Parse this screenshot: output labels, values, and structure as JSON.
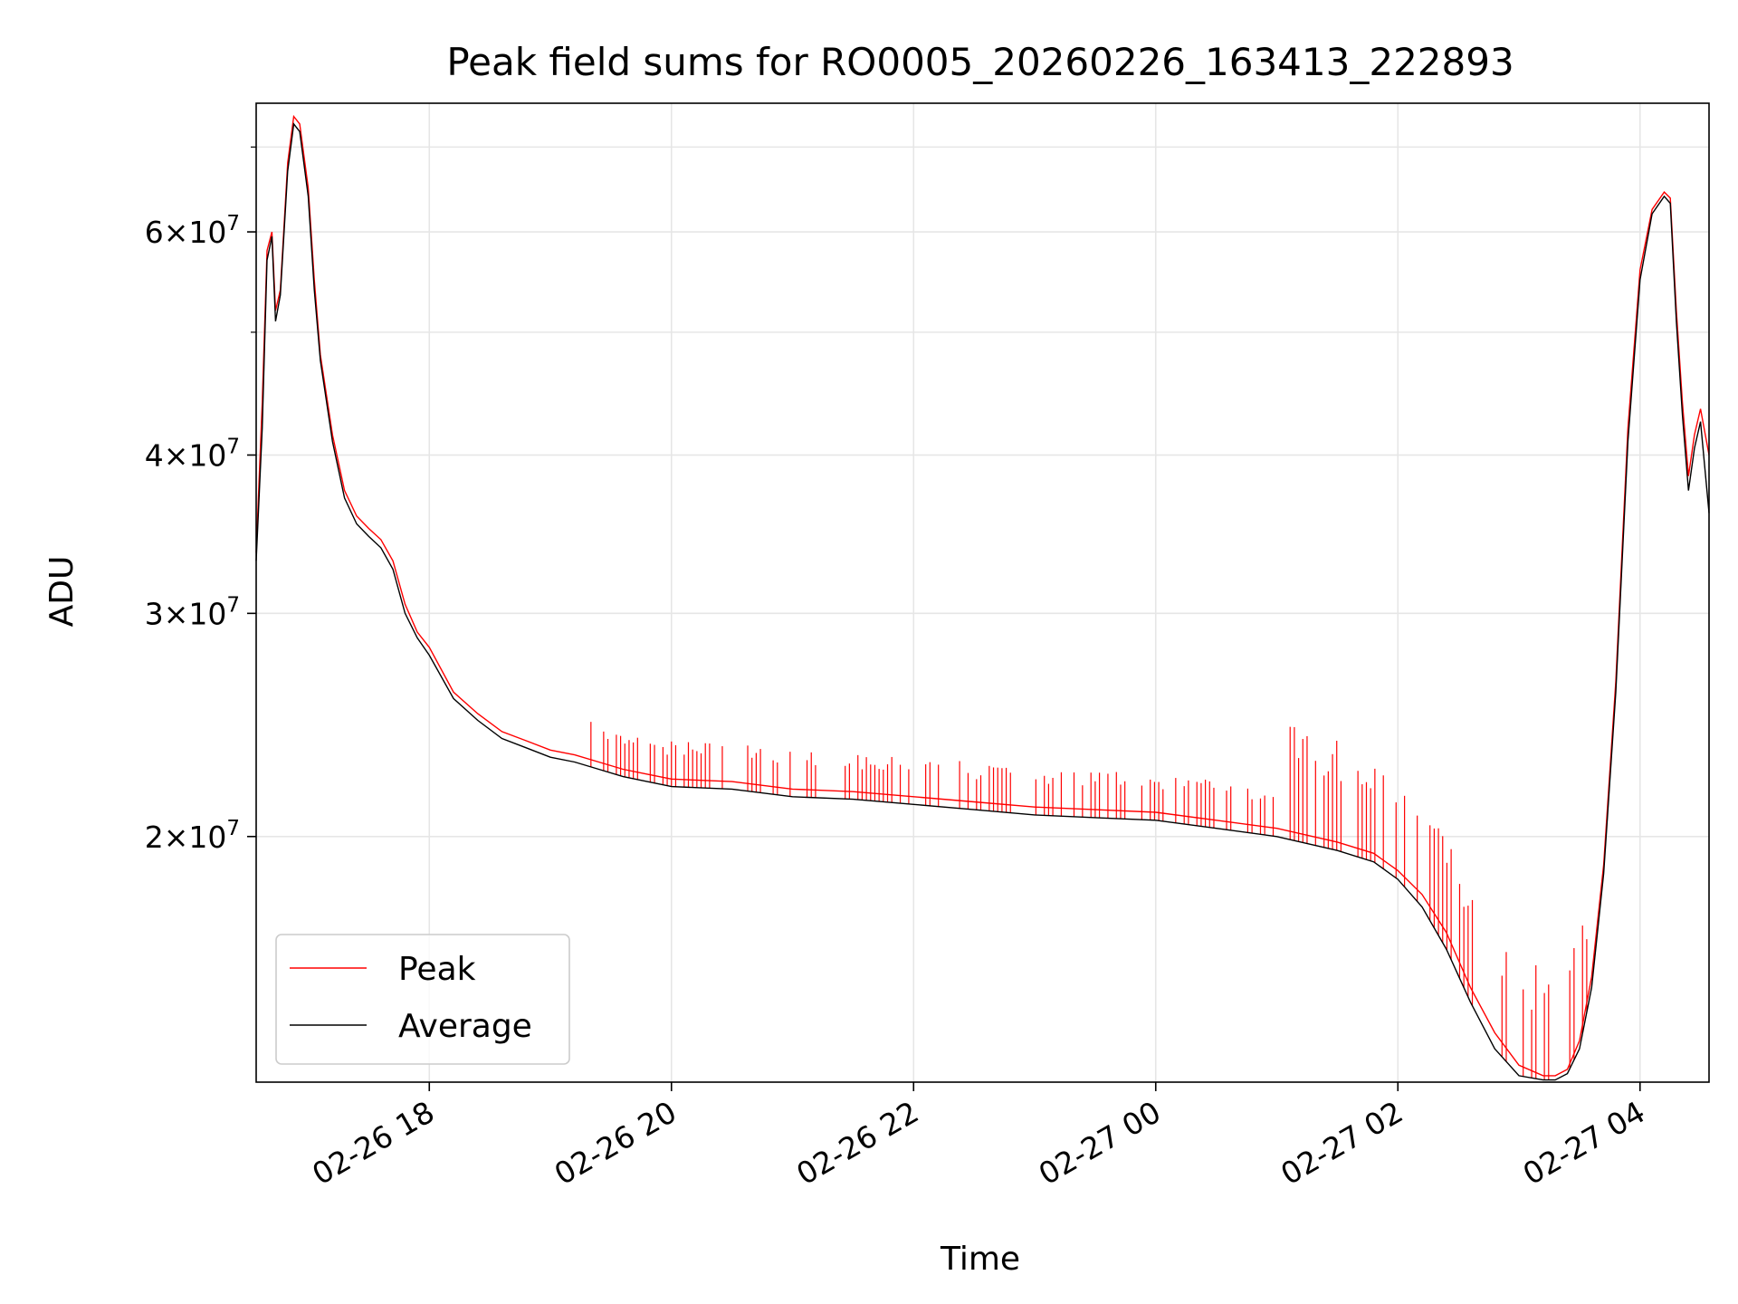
{
  "chart_data": {
    "type": "line",
    "title": "Peak field sums for RO0005_20260226_163413_222893",
    "xlabel": "Time",
    "ylabel": "ADU",
    "yscale": "log",
    "ylim": [
      12800000,
      75800000
    ],
    "xlim_hours_from_0226_0000": [
      16.57,
      28.57
    ],
    "grid": true,
    "legend_position": "lower-left",
    "x_ticks": [
      {
        "label": "02-26 18",
        "value": 18
      },
      {
        "label": "02-26 20",
        "value": 20
      },
      {
        "label": "02-26 22",
        "value": 22
      },
      {
        "label": "02-27 00",
        "value": 24
      },
      {
        "label": "02-27 02",
        "value": 26
      },
      {
        "label": "02-27 04",
        "value": 28
      }
    ],
    "y_major_ticks": [
      {
        "mantissa": "2",
        "exponent": "7",
        "value": 20000000
      },
      {
        "mantissa": "3",
        "exponent": "7",
        "value": 30000000
      },
      {
        "mantissa": "4",
        "exponent": "7",
        "value": 40000000
      },
      {
        "mantissa": "6",
        "exponent": "7",
        "value": 60000000
      }
    ],
    "y_minor_ticks": [
      50000000,
      70000000
    ],
    "series": [
      {
        "name": "Peak",
        "color": "#ff0000",
        "x": [
          16.57,
          16.62,
          16.66,
          16.7,
          16.73,
          16.77,
          16.83,
          16.88,
          16.93,
          17.0,
          17.05,
          17.1,
          17.2,
          17.3,
          17.4,
          17.5,
          17.6,
          17.7,
          17.8,
          17.9,
          18.0,
          18.2,
          18.4,
          18.6,
          18.8,
          19.0,
          19.2,
          19.4,
          19.6,
          19.8,
          20.0,
          20.5,
          21.0,
          21.5,
          22.0,
          22.5,
          23.0,
          23.5,
          24.0,
          24.5,
          25.0,
          25.5,
          25.8,
          26.0,
          26.2,
          26.4,
          26.6,
          26.8,
          27.0,
          27.2,
          27.3,
          27.4,
          27.5,
          27.6,
          27.7,
          27.8,
          27.9,
          28.0,
          28.1,
          28.2,
          28.25,
          28.3,
          28.35,
          28.4,
          28.45,
          28.5,
          28.57
        ],
        "y": [
          33500000,
          44000000,
          58000000,
          60000000,
          52000000,
          54000000,
          68000000,
          74000000,
          73000000,
          65000000,
          55000000,
          48000000,
          41500000,
          37500000,
          35800000,
          35000000,
          34300000,
          33000000,
          30500000,
          29000000,
          28200000,
          26000000,
          25000000,
          24200000,
          23800000,
          23400000,
          23200000,
          22900000,
          22600000,
          22400000,
          22200000,
          22100000,
          21800000,
          21700000,
          21500000,
          21300000,
          21100000,
          21000000,
          20900000,
          20600000,
          20300000,
          19800000,
          19400000,
          18800000,
          18000000,
          16800000,
          15200000,
          14000000,
          13200000,
          12950000,
          12950000,
          13100000,
          13800000,
          15500000,
          19000000,
          26500000,
          42000000,
          56000000,
          62500000,
          64500000,
          63800000,
          52000000,
          44000000,
          38500000,
          41500000,
          43500000,
          40000000
        ]
      },
      {
        "name": "Average",
        "color": "#000000",
        "x": [
          16.57,
          16.62,
          16.66,
          16.7,
          16.73,
          16.77,
          16.83,
          16.88,
          16.93,
          17.0,
          17.05,
          17.1,
          17.2,
          17.3,
          17.4,
          17.5,
          17.6,
          17.7,
          17.8,
          17.9,
          18.0,
          18.2,
          18.4,
          18.6,
          18.8,
          19.0,
          19.2,
          19.4,
          19.6,
          19.8,
          20.0,
          20.5,
          21.0,
          21.5,
          22.0,
          22.5,
          23.0,
          23.5,
          24.0,
          24.5,
          25.0,
          25.5,
          25.8,
          26.0,
          26.2,
          26.4,
          26.6,
          26.8,
          27.0,
          27.2,
          27.3,
          27.4,
          27.5,
          27.6,
          27.7,
          27.8,
          27.9,
          28.0,
          28.1,
          28.2,
          28.25,
          28.3,
          28.35,
          28.4,
          28.45,
          28.5,
          28.57
        ],
        "y": [
          33000000,
          42000000,
          57000000,
          59500000,
          51000000,
          53500000,
          67000000,
          73000000,
          72000000,
          64000000,
          54000000,
          47500000,
          41000000,
          37000000,
          35300000,
          34500000,
          33800000,
          32500000,
          30000000,
          28700000,
          27800000,
          25700000,
          24700000,
          23900000,
          23500000,
          23100000,
          22900000,
          22600000,
          22300000,
          22100000,
          21900000,
          21800000,
          21500000,
          21400000,
          21200000,
          21000000,
          20800000,
          20700000,
          20600000,
          20300000,
          20000000,
          19500000,
          19100000,
          18500000,
          17600000,
          16300000,
          14800000,
          13600000,
          12950000,
          12850000,
          12850000,
          13000000,
          13600000,
          15200000,
          18700000,
          26000000,
          41000000,
          55000000,
          62000000,
          64000000,
          63200000,
          51000000,
          43000000,
          37500000,
          40500000,
          42500000,
          36000000
        ]
      }
    ]
  }
}
